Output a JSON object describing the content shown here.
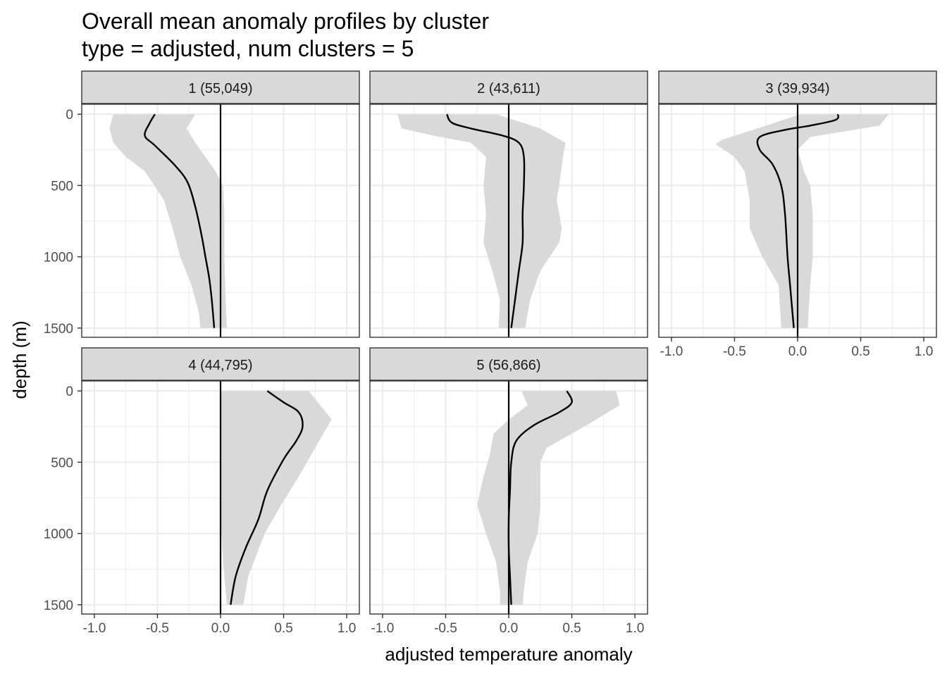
{
  "chart_data": {
    "type": "line",
    "title": "Overall mean anomaly profiles by cluster",
    "subtitle": "type = adjusted, num clusters = 5",
    "xlabel": "adjusted temperature anomaly",
    "ylabel": "depth (m)",
    "xlim": [
      -1.1,
      1.1
    ],
    "ylim": [
      1565,
      -70
    ],
    "y_reversed": true,
    "x_ticks": [
      -1.0,
      -0.5,
      0.0,
      0.5,
      1.0
    ],
    "x_tick_labels": [
      "-1.0",
      "-0.5",
      "0.0",
      "0.5",
      "1.0"
    ],
    "y_ticks": [
      0,
      500,
      1000,
      1500
    ],
    "y_tick_labels": [
      "0",
      "500",
      "1000",
      "1500"
    ],
    "grid": true,
    "reference_line_x": 0,
    "colors": {
      "line": "#000000",
      "ribbon": "#d9d9d9",
      "strip": "#d9d9d9",
      "grid": "#ebebeb",
      "frame": "#333333"
    },
    "panels": [
      {
        "label": "1 (55,049)",
        "mean": [
          [
            -0.52,
            0
          ],
          [
            -0.56,
            60
          ],
          [
            -0.6,
            150
          ],
          [
            -0.52,
            220
          ],
          [
            -0.36,
            360
          ],
          [
            -0.26,
            480
          ],
          [
            -0.2,
            650
          ],
          [
            -0.15,
            850
          ],
          [
            -0.12,
            1000
          ],
          [
            -0.09,
            1150
          ],
          [
            -0.07,
            1300
          ],
          [
            -0.05,
            1500
          ]
        ],
        "lower": [
          [
            -0.85,
            0
          ],
          [
            -0.88,
            100
          ],
          [
            -0.85,
            200
          ],
          [
            -0.75,
            300
          ],
          [
            -0.6,
            400
          ],
          [
            -0.45,
            600
          ],
          [
            -0.38,
            800
          ],
          [
            -0.32,
            1000
          ],
          [
            -0.23,
            1200
          ],
          [
            -0.17,
            1400
          ],
          [
            -0.16,
            1500
          ]
        ],
        "upper": [
          [
            -0.2,
            0
          ],
          [
            -0.27,
            100
          ],
          [
            -0.2,
            200
          ],
          [
            -0.12,
            300
          ],
          [
            -0.04,
            400
          ],
          [
            0.02,
            500
          ],
          [
            0.03,
            700
          ],
          [
            0.03,
            1000
          ],
          [
            0.04,
            1300
          ],
          [
            0.05,
            1500
          ]
        ]
      },
      {
        "label": "2 (43,611)",
        "mean": [
          [
            -0.49,
            0
          ],
          [
            -0.45,
            60
          ],
          [
            -0.3,
            100
          ],
          [
            -0.05,
            150
          ],
          [
            0.08,
            200
          ],
          [
            0.12,
            300
          ],
          [
            0.12,
            500
          ],
          [
            0.11,
            700
          ],
          [
            0.11,
            900
          ],
          [
            0.08,
            1100
          ],
          [
            0.05,
            1300
          ],
          [
            0.02,
            1500
          ]
        ],
        "lower": [
          [
            -0.88,
            0
          ],
          [
            -0.85,
            100
          ],
          [
            -0.6,
            150
          ],
          [
            -0.3,
            200
          ],
          [
            -0.18,
            300
          ],
          [
            -0.2,
            500
          ],
          [
            -0.18,
            700
          ],
          [
            -0.2,
            900
          ],
          [
            -0.13,
            1100
          ],
          [
            -0.07,
            1300
          ],
          [
            -0.08,
            1500
          ]
        ],
        "upper": [
          [
            -0.1,
            0
          ],
          [
            0.25,
            100
          ],
          [
            0.45,
            200
          ],
          [
            0.43,
            300
          ],
          [
            0.4,
            500
          ],
          [
            0.38,
            600
          ],
          [
            0.42,
            800
          ],
          [
            0.4,
            900
          ],
          [
            0.25,
            1100
          ],
          [
            0.17,
            1300
          ],
          [
            0.13,
            1500
          ]
        ]
      },
      {
        "label": "3 (39,934)",
        "mean": [
          [
            0.32,
            0
          ],
          [
            0.3,
            40
          ],
          [
            0.1,
            80
          ],
          [
            -0.1,
            110
          ],
          [
            -0.3,
            160
          ],
          [
            -0.3,
            250
          ],
          [
            -0.2,
            350
          ],
          [
            -0.13,
            500
          ],
          [
            -0.1,
            700
          ],
          [
            -0.08,
            1000
          ],
          [
            -0.06,
            1200
          ],
          [
            -0.03,
            1500
          ]
        ],
        "lower": [
          [
            0.02,
            0
          ],
          [
            -0.25,
            80
          ],
          [
            -0.6,
            180
          ],
          [
            -0.65,
            210
          ],
          [
            -0.5,
            300
          ],
          [
            -0.42,
            400
          ],
          [
            -0.38,
            600
          ],
          [
            -0.38,
            800
          ],
          [
            -0.28,
            1000
          ],
          [
            -0.15,
            1200
          ],
          [
            -0.13,
            1500
          ]
        ],
        "upper": [
          [
            0.72,
            0
          ],
          [
            0.65,
            80
          ],
          [
            0.1,
            160
          ],
          [
            0.0,
            250
          ],
          [
            0.05,
            400
          ],
          [
            0.1,
            500
          ],
          [
            0.12,
            700
          ],
          [
            0.12,
            1000
          ],
          [
            0.1,
            1200
          ],
          [
            0.08,
            1500
          ]
        ]
      },
      {
        "label": "4 (44,795)",
        "mean": [
          [
            0.37,
            0
          ],
          [
            0.5,
            80
          ],
          [
            0.62,
            150
          ],
          [
            0.65,
            250
          ],
          [
            0.6,
            350
          ],
          [
            0.5,
            480
          ],
          [
            0.37,
            700
          ],
          [
            0.3,
            900
          ],
          [
            0.2,
            1100
          ],
          [
            0.12,
            1300
          ],
          [
            0.08,
            1500
          ]
        ],
        "lower": [
          [
            0.0,
            0
          ],
          [
            0.0,
            900
          ],
          [
            0.02,
            1200
          ],
          [
            0.05,
            1500
          ]
        ],
        "upper": [
          [
            0.7,
            0
          ],
          [
            0.88,
            200
          ],
          [
            0.75,
            400
          ],
          [
            0.62,
            600
          ],
          [
            0.48,
            800
          ],
          [
            0.35,
            1000
          ],
          [
            0.22,
            1300
          ],
          [
            0.18,
            1500
          ]
        ]
      },
      {
        "label": "5 (56,866)",
        "mean": [
          [
            0.46,
            0
          ],
          [
            0.5,
            80
          ],
          [
            0.4,
            150
          ],
          [
            0.2,
            240
          ],
          [
            0.06,
            350
          ],
          [
            0.02,
            500
          ],
          [
            0.01,
            700
          ],
          [
            0.0,
            900
          ],
          [
            0.0,
            1100
          ],
          [
            0.01,
            1300
          ],
          [
            0.02,
            1500
          ]
        ],
        "lower": [
          [
            0.1,
            0
          ],
          [
            0.15,
            100
          ],
          [
            0.0,
            200
          ],
          [
            -0.12,
            300
          ],
          [
            -0.15,
            450
          ],
          [
            -0.2,
            600
          ],
          [
            -0.25,
            800
          ],
          [
            -0.18,
            1000
          ],
          [
            -0.1,
            1200
          ],
          [
            -0.07,
            1400
          ],
          [
            -0.07,
            1500
          ]
        ],
        "upper": [
          [
            0.85,
            0
          ],
          [
            0.88,
            100
          ],
          [
            0.6,
            250
          ],
          [
            0.3,
            400
          ],
          [
            0.25,
            500
          ],
          [
            0.25,
            600
          ],
          [
            0.25,
            800
          ],
          [
            0.23,
            1000
          ],
          [
            0.15,
            1200
          ],
          [
            0.12,
            1400
          ],
          [
            0.11,
            1500
          ]
        ]
      }
    ]
  }
}
